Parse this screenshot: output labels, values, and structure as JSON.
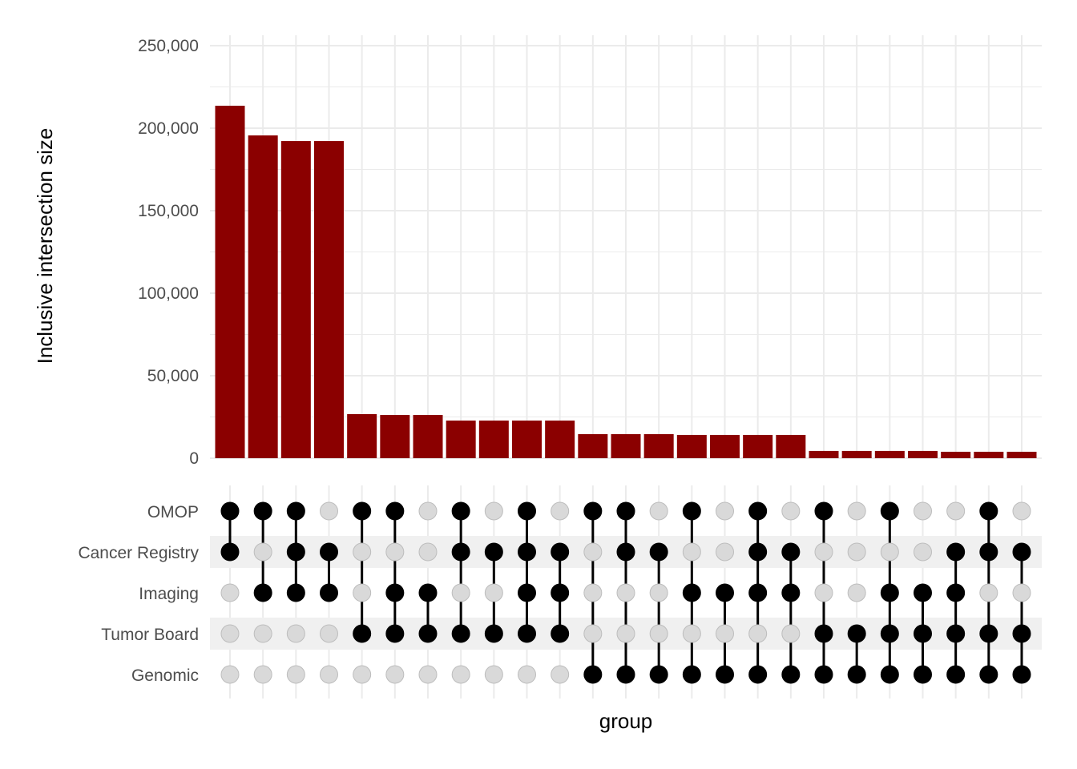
{
  "chart_data": {
    "type": "upset",
    "ylabel": "Inclusive intersection size",
    "xlabel": "group",
    "ylim": [
      0,
      250000
    ],
    "yticks": [
      0,
      50000,
      100000,
      150000,
      200000,
      250000
    ],
    "ytick_labels": [
      "0",
      "50,000",
      "100,000",
      "150,000",
      "200,000",
      "250,000"
    ],
    "grid": true,
    "bar_color": "#8B0000",
    "sets": [
      "OMOP",
      "Cancer Registry",
      "Imaging",
      "Tumor Board",
      "Genomic"
    ],
    "intersections": [
      {
        "members": [
          "OMOP",
          "Cancer Registry"
        ],
        "value": 213600
      },
      {
        "members": [
          "OMOP",
          "Imaging"
        ],
        "value": 195600
      },
      {
        "members": [
          "OMOP",
          "Cancer Registry",
          "Imaging"
        ],
        "value": 192200
      },
      {
        "members": [
          "Cancer Registry",
          "Imaging"
        ],
        "value": 192200
      },
      {
        "members": [
          "OMOP",
          "Tumor Board"
        ],
        "value": 26700
      },
      {
        "members": [
          "OMOP",
          "Imaging",
          "Tumor Board"
        ],
        "value": 26200
      },
      {
        "members": [
          "Imaging",
          "Tumor Board"
        ],
        "value": 26200
      },
      {
        "members": [
          "OMOP",
          "Cancer Registry",
          "Tumor Board"
        ],
        "value": 22800
      },
      {
        "members": [
          "Cancer Registry",
          "Tumor Board"
        ],
        "value": 22800
      },
      {
        "members": [
          "OMOP",
          "Cancer Registry",
          "Imaging",
          "Tumor Board"
        ],
        "value": 22800
      },
      {
        "members": [
          "Cancer Registry",
          "Imaging",
          "Tumor Board"
        ],
        "value": 22800
      },
      {
        "members": [
          "OMOP",
          "Genomic"
        ],
        "value": 14600
      },
      {
        "members": [
          "OMOP",
          "Cancer Registry",
          "Genomic"
        ],
        "value": 14600
      },
      {
        "members": [
          "Cancer Registry",
          "Genomic"
        ],
        "value": 14600
      },
      {
        "members": [
          "OMOP",
          "Imaging",
          "Genomic"
        ],
        "value": 14100
      },
      {
        "members": [
          "Imaging",
          "Genomic"
        ],
        "value": 14100
      },
      {
        "members": [
          "OMOP",
          "Cancer Registry",
          "Imaging",
          "Genomic"
        ],
        "value": 14100
      },
      {
        "members": [
          "Cancer Registry",
          "Imaging",
          "Genomic"
        ],
        "value": 14100
      },
      {
        "members": [
          "OMOP",
          "Tumor Board",
          "Genomic"
        ],
        "value": 4400
      },
      {
        "members": [
          "Tumor Board",
          "Genomic"
        ],
        "value": 4400
      },
      {
        "members": [
          "OMOP",
          "Imaging",
          "Tumor Board",
          "Genomic"
        ],
        "value": 4400
      },
      {
        "members": [
          "Imaging",
          "Tumor Board",
          "Genomic"
        ],
        "value": 4400
      },
      {
        "members": [
          "Cancer Registry",
          "Imaging",
          "Tumor Board",
          "Genomic"
        ],
        "value": 3900
      },
      {
        "members": [
          "OMOP",
          "Cancer Registry",
          "Tumor Board",
          "Genomic"
        ],
        "value": 3900
      },
      {
        "members": [
          "Cancer Registry",
          "Tumor Board",
          "Genomic"
        ],
        "value": 3900
      }
    ]
  }
}
